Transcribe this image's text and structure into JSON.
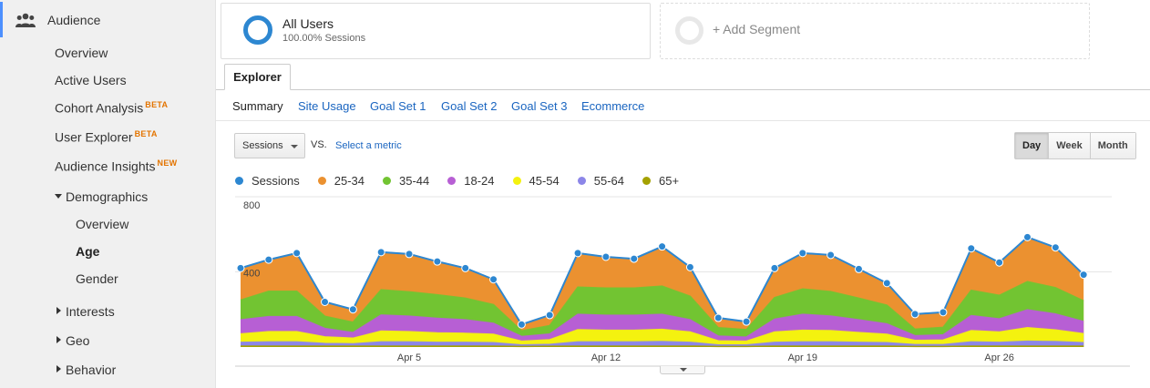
{
  "sidebar": {
    "section": "Audience",
    "items": [
      {
        "label": "Overview",
        "badge": ""
      },
      {
        "label": "Active Users",
        "badge": ""
      },
      {
        "label": "Cohort Analysis",
        "badge": "BETA"
      },
      {
        "label": "User Explorer",
        "badge": "BETA"
      },
      {
        "label": "Audience Insights",
        "badge": "NEW"
      }
    ],
    "demographics": {
      "label": "Demographics",
      "children": [
        "Overview",
        "Age",
        "Gender"
      ],
      "active": "Age"
    },
    "collapsed": [
      "Interests",
      "Geo",
      "Behavior"
    ]
  },
  "segments": {
    "all_users": {
      "title": "All Users",
      "subtitle": "100.00% Sessions"
    },
    "add_label": "+ Add Segment"
  },
  "explorer": {
    "tab": "Explorer",
    "subtabs": [
      "Summary",
      "Site Usage",
      "Goal Set 1",
      "Goal Set 2",
      "Goal Set 3",
      "Ecommerce"
    ],
    "active_subtab": "Summary"
  },
  "controls": {
    "metric": "Sessions",
    "vs": "VS.",
    "select_metric": "Select a metric",
    "periods": [
      "Day",
      "Week",
      "Month"
    ],
    "selected_period": "Day"
  },
  "colors": {
    "sessions": "#2d87d1",
    "age_25_34": "#eb9130",
    "age_35_44": "#72c432",
    "age_18_24": "#b75fd4",
    "age_45_54": "#f4f20f",
    "age_55_64": "#8c86e8",
    "age_65_plus": "#a4a100"
  },
  "chart_data": {
    "type": "area",
    "x": [
      "Mar 30",
      "Mar 31",
      "Apr 1",
      "Apr 2",
      "Apr 3",
      "Apr 4",
      "Apr 5",
      "Apr 6",
      "Apr 7",
      "Apr 8",
      "Apr 9",
      "Apr 10",
      "Apr 11",
      "Apr 12",
      "Apr 13",
      "Apr 14",
      "Apr 15",
      "Apr 16",
      "Apr 17",
      "Apr 18",
      "Apr 19",
      "Apr 20",
      "Apr 21",
      "Apr 22",
      "Apr 23",
      "Apr 24",
      "Apr 25",
      "Apr 26",
      "Apr 27",
      "Apr 28",
      "Apr 29",
      "Apr 30"
    ],
    "x_ticks": [
      "Apr 5",
      "Apr 12",
      "Apr 19",
      "Apr 26"
    ],
    "y_ticks": [
      "400",
      "800"
    ],
    "ylim": [
      0,
      800
    ],
    "line_series": {
      "name": "Sessions",
      "values": [
        420,
        465,
        500,
        240,
        200,
        505,
        495,
        455,
        420,
        360,
        120,
        170,
        500,
        480,
        470,
        535,
        425,
        155,
        135,
        420,
        500,
        490,
        415,
        340,
        175,
        185,
        525,
        450,
        585,
        530,
        385,
        0
      ]
    },
    "stacked_series": [
      {
        "name": "65+",
        "values": [
          5,
          5,
          5,
          5,
          5,
          5,
          5,
          5,
          5,
          5,
          3,
          4,
          5,
          5,
          5,
          5,
          5,
          3,
          3,
          5,
          5,
          5,
          5,
          5,
          3,
          3,
          5,
          5,
          5,
          5,
          5,
          0
        ]
      },
      {
        "name": "55-64",
        "values": [
          20,
          22,
          22,
          14,
          12,
          22,
          22,
          20,
          20,
          18,
          8,
          10,
          22,
          22,
          22,
          24,
          20,
          8,
          8,
          20,
          22,
          22,
          20,
          18,
          10,
          10,
          22,
          20,
          26,
          24,
          18,
          0
        ]
      },
      {
        "name": "45-54",
        "values": [
          45,
          55,
          55,
          35,
          30,
          58,
          55,
          50,
          48,
          45,
          20,
          25,
          65,
          62,
          62,
          65,
          55,
          22,
          20,
          55,
          62,
          60,
          52,
          45,
          22,
          24,
          60,
          55,
          72,
          62,
          48,
          0
        ]
      },
      {
        "name": "18-24",
        "values": [
          75,
          80,
          80,
          45,
          30,
          85,
          82,
          78,
          72,
          58,
          25,
          30,
          82,
          80,
          80,
          80,
          65,
          25,
          22,
          68,
          85,
          78,
          68,
          55,
          25,
          28,
          80,
          70,
          95,
          85,
          65,
          0
        ]
      },
      {
        "name": "35-44",
        "values": [
          105,
          135,
          135,
          65,
          55,
          135,
          130,
          125,
          115,
          100,
          30,
          45,
          145,
          145,
          145,
          150,
          125,
          45,
          40,
          115,
          135,
          130,
          115,
          100,
          35,
          40,
          135,
          125,
          150,
          140,
          110,
          0
        ]
      },
      {
        "name": "25-34",
        "values": [
          170,
          168,
          203,
          76,
          68,
          200,
          201,
          177,
          160,
          134,
          34,
          56,
          181,
          166,
          156,
          211,
          155,
          52,
          42,
          157,
          191,
          195,
          155,
          117,
          80,
          80,
          223,
          175,
          237,
          214,
          139,
          0
        ]
      }
    ]
  }
}
